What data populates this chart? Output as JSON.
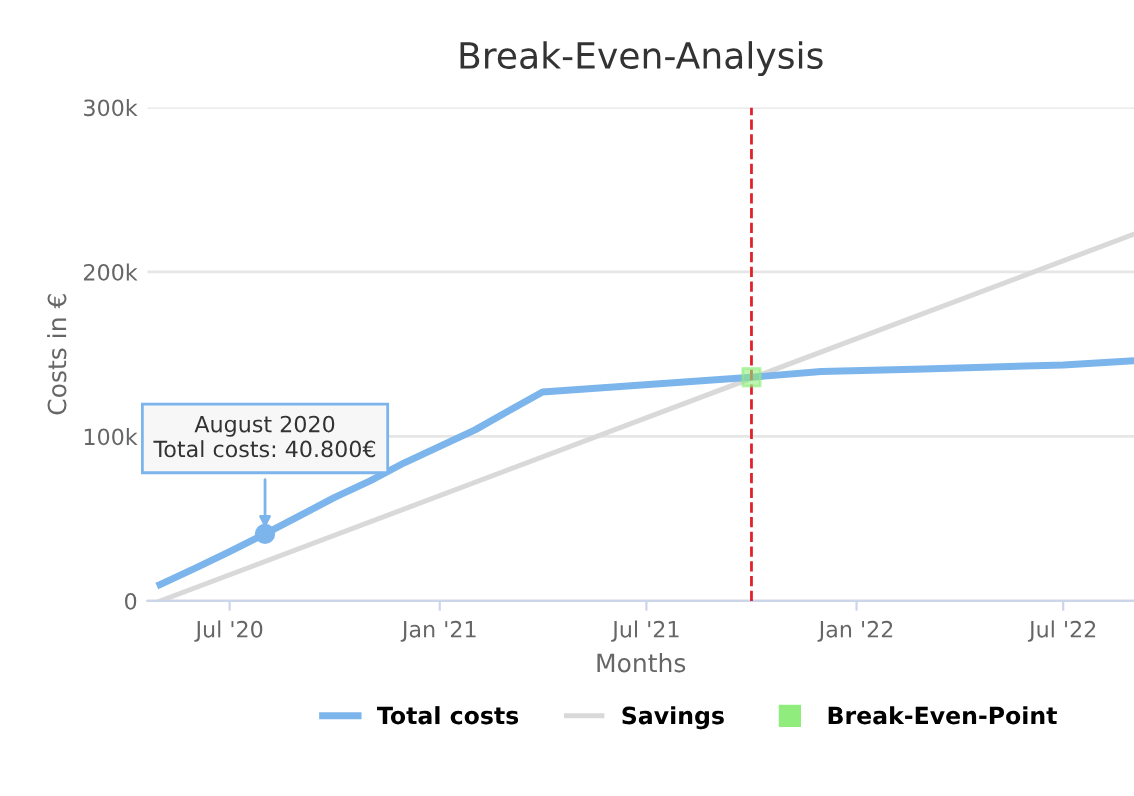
{
  "chart_data": {
    "type": "line",
    "title": "Break-Even-Analysis",
    "xlabel": "Months",
    "ylabel": "Costs in €",
    "xlim": [
      "2020-04-20",
      "2022-09-01"
    ],
    "xticks": [
      {
        "value": "2020-07",
        "label": "Jul '20"
      },
      {
        "value": "2021-01",
        "label": "Jan '21"
      },
      {
        "value": "2021-07",
        "label": "Jul '21"
      },
      {
        "value": "2022-01",
        "label": "Jan '22"
      },
      {
        "value": "2022-07",
        "label": "Jul '22"
      }
    ],
    "ylim": [
      0,
      300000
    ],
    "yticks": [
      {
        "value": 0,
        "label": "0"
      },
      {
        "value": 100000,
        "label": "100k"
      },
      {
        "value": 200000,
        "label": "200k"
      },
      {
        "value": 300000,
        "label": "300k"
      }
    ],
    "grid": "y",
    "legend": "bottom",
    "marker": "none",
    "series": [
      {
        "name": "Total costs",
        "color": "#7cb5ec",
        "x": [
          "2020-05",
          "2020-06",
          "2020-07",
          "2020-08",
          "2020-09",
          "2020-10",
          "2020-11",
          "2020-12",
          "2021-01",
          "2021-02",
          "2021-03",
          "2021-04",
          "2021-10",
          "2021-12",
          "2022-03",
          "2022-07",
          "2022-09"
        ],
        "values": [
          10000,
          20000,
          30000,
          40800,
          52000,
          63000,
          73000,
          84000,
          94000,
          104000,
          115000,
          127000,
          136000,
          139500,
          141000,
          143500,
          146000
        ]
      },
      {
        "name": "Savings",
        "color": "#d9d9d9",
        "x": [
          "2020-05",
          "2022-09"
        ],
        "values": [
          0,
          223000
        ]
      },
      {
        "name": "Break-Even-Point",
        "type": "scatter",
        "marker": "square",
        "color": "#90ed7d",
        "x": [
          "2021-10"
        ],
        "values": [
          136000
        ]
      }
    ],
    "ref_lines": [
      {
        "axis": "x",
        "value": "2021-10",
        "color": "#e0202a",
        "line_style": "dashed"
      }
    ],
    "annotations": [
      {
        "text": "August 2020\nTotal costs: 40.800€",
        "x": "2020-08",
        "y": 40800
      }
    ]
  }
}
